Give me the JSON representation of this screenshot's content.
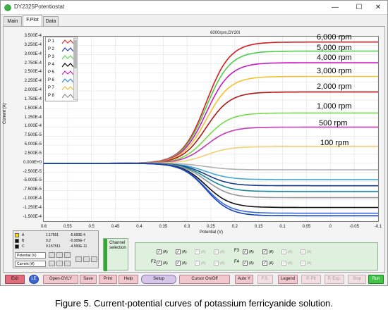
{
  "window": {
    "title": "DY2325Potentiostat",
    "minimize": "—",
    "maximize": "☐",
    "close": "✕"
  },
  "tabs": [
    {
      "label": "Main",
      "active": false
    },
    {
      "label": "F.Plot",
      "active": true
    },
    {
      "label": "Data",
      "active": false
    }
  ],
  "plot": {
    "title": "6000rpm,DY20t"
  },
  "legend": {
    "items": [
      {
        "label": "P 1",
        "color": "#e03030"
      },
      {
        "label": "P 2",
        "color": "#2040c0"
      },
      {
        "label": "P 3",
        "color": "#60d060"
      },
      {
        "label": "P 4",
        "color": "#000000"
      },
      {
        "label": "P 5",
        "color": "#d020c0"
      },
      {
        "label": "P 6",
        "color": "#3090d0"
      },
      {
        "label": "P 7",
        "color": "#f0c030"
      },
      {
        "label": "P 8",
        "color": "#909090"
      }
    ]
  },
  "annotations": [
    "6,000 rpm",
    "5,000 rpm",
    "4,000 rpm",
    "3,000 rpm",
    "2,000 rpm",
    "1,000 rpm",
    "500 rpm",
    "100 rpm"
  ],
  "cursor_panel": {
    "rows": [
      {
        "name": "A",
        "v1": "1.17551",
        "v2": "-5.600E-4",
        "color": "#ffd800"
      },
      {
        "name": "B",
        "v1": "0.2",
        "v2": "-0.905E-7",
        "color": "#111111"
      },
      {
        "name": "C",
        "v1": "0.157511",
        "v2": "-4.500E-11",
        "color": "#111111"
      }
    ],
    "axis_x": "Potential (V)",
    "axis_y": "Current (A)"
  },
  "channel_selection": {
    "label": "Channel selection",
    "f_labels": [
      "F2",
      "F3",
      "F4"
    ],
    "unit": "(A)"
  },
  "toolbar": {
    "buttons": [
      "Exit",
      "LE",
      "Open-OVLY",
      "Save",
      "Print",
      "Help",
      "Setup",
      "Cursor On/Off",
      "Auto Y",
      "F.S.",
      "Legend",
      "P. Plt",
      "P. Exp.",
      "Stop",
      "Run"
    ]
  },
  "caption": "Figure 5. Current-potential curves of potassium ferricyanide solution.",
  "chart_data": {
    "type": "line",
    "xlabel": "Potential (V)",
    "ylabel": "Current (A)",
    "xlim": [
      0.6,
      -0.1
    ],
    "ylim": [
      -0.00016,
      0.00035
    ],
    "x_ticks": [
      "0.6",
      "0.55",
      "0.5",
      "0.45",
      "0.4",
      "0.35",
      "0.3",
      "0.25",
      "0.2",
      "0.15",
      "0.1",
      "0.05",
      "0",
      "-0.05",
      "-0.1"
    ],
    "y_ticks": [
      "3.500E-4",
      "3.250E-4",
      "3.000E-4",
      "2.750E-4",
      "2.500E-4",
      "2.250E-4",
      "2.000E-4",
      "1.750E-4",
      "1.500E-4",
      "1.250E-4",
      "1.000E-4",
      "7.500E-5",
      "5.000E-5",
      "2.500E-5",
      "0.000E+0",
      "-2.500E-5",
      "-5.000E-5",
      "-7.500E-5",
      "-1.000E-4",
      "-1.250E-4",
      "-1.500E-4"
    ],
    "half_wave_potential": 0.26,
    "curve_steepness": 0.025,
    "series": [
      {
        "name": "6,000 rpm",
        "color": "#d81c24",
        "limit": 0.000335
      },
      {
        "name": "5,000 rpm",
        "color": "#4ccc4c",
        "limit": 0.00031
      },
      {
        "name": "4,000 rpm",
        "color": "#c61cc0",
        "limit": 0.000278
      },
      {
        "name": "3,000 rpm",
        "color": "#f5c030",
        "limit": 0.00024
      },
      {
        "name": "2,000 rpm",
        "color": "#b01818",
        "limit": 0.000197
      },
      {
        "name": "1,000 rpm",
        "color": "#74dc46",
        "limit": 0.000139
      },
      {
        "name": "500 rpm",
        "color": "#c23ab6",
        "limit": 0.0001
      },
      {
        "name": "100 rpm",
        "color": "#f0d070",
        "limit": 4.6e-05
      },
      {
        "name": "",
        "color": "#b0b0b0",
        "limit": -1.8e-05
      },
      {
        "name": "",
        "color": "#44a8d4",
        "limit": -4.5e-05
      },
      {
        "name": "",
        "color": "#1a3a8a",
        "limit": -6.2e-05
      },
      {
        "name": "",
        "color": "#1a8a9a",
        "limit": -7.8e-05
      },
      {
        "name": "",
        "color": "#969696",
        "limit": -9.5e-05
      },
      {
        "name": "",
        "color": "#111111",
        "limit": -0.000122
      },
      {
        "name": "",
        "color": "#3a6adc",
        "limit": -0.000138
      },
      {
        "name": "",
        "color": "#1440b8",
        "limit": -0.000145
      }
    ]
  }
}
